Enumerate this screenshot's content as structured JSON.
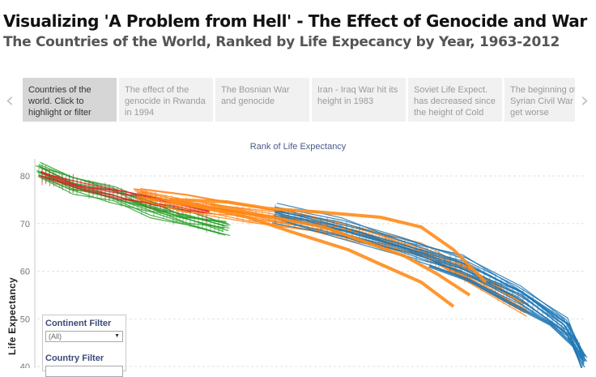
{
  "header": {
    "title": "Visualizing 'A Problem from Hell' - The Effect of Genocide and War",
    "subtitle": "The Countries of the World, Ranked by Life Expecancy by Year, 1963-2012"
  },
  "story": {
    "points": [
      {
        "text": "Countries of the world. Click to highlight or filter",
        "active": true
      },
      {
        "text": "The effect of the genocide in Rwanda in 1994",
        "active": false
      },
      {
        "text": "The Bosnian War and genocide",
        "active": false
      },
      {
        "text": "Iran - Iraq War hit its height in 1983",
        "active": false
      },
      {
        "text": "Soviet Life Expect. has decreased since the height of Cold",
        "active": false
      },
      {
        "text": "The beginning of Syrian Civil War only get worse",
        "active": false
      }
    ],
    "prev_icon": "‹",
    "next_icon": "›"
  },
  "filters": {
    "continent_label": "Continent Filter",
    "continent_value": "(All)",
    "country_label": "Country Filter",
    "country_value": ""
  },
  "chart_data": {
    "type": "line",
    "title": "Rank of Life Expectancy",
    "xlabel": "",
    "ylabel": "Life Expectancy",
    "y_ticks": [
      80,
      70,
      60,
      50,
      40
    ],
    "ylim": [
      40,
      82
    ],
    "grid": true,
    "legend": "none",
    "series": [
      {
        "color": "#2ca02c",
        "values": [
          81,
          78,
          76,
          73,
          71,
          69
        ]
      },
      {
        "color": "#d62728",
        "values": [
          80,
          78,
          76,
          74,
          72
        ]
      },
      {
        "color": "#ff7f0e",
        "values": [
          76,
          74,
          72,
          70,
          68,
          64,
          59,
          52
        ]
      },
      {
        "color": "#1f77b4",
        "values": [
          72,
          69,
          65,
          61,
          55,
          48,
          41
        ]
      }
    ]
  }
}
